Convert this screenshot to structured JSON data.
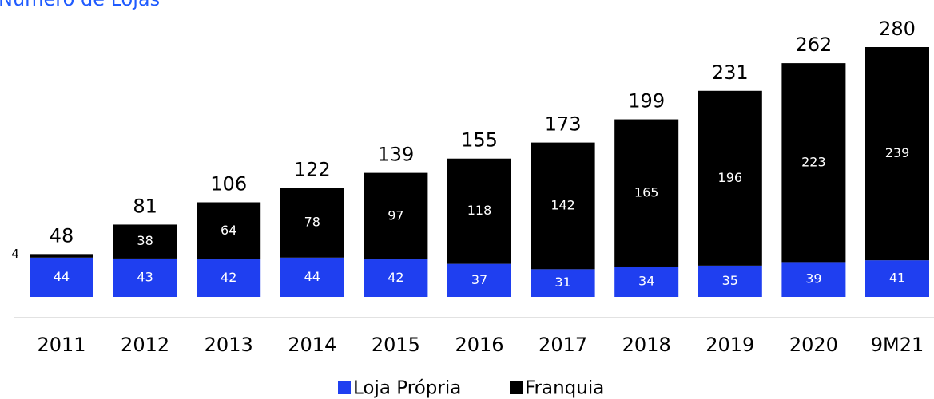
{
  "chart_data": {
    "type": "stacked_bar",
    "title": "Número de Lojas",
    "categories": [
      "2011",
      "2012",
      "2013",
      "2014",
      "2015",
      "2016",
      "2017",
      "2018",
      "2019",
      "2020",
      "9M21"
    ],
    "series": [
      {
        "name": "Loja Própria",
        "color": "#1f3ff0",
        "values": [
          44,
          43,
          42,
          44,
          42,
          37,
          31,
          34,
          35,
          39,
          41
        ]
      },
      {
        "name": "Franquia",
        "color": "#000000",
        "values": [
          4,
          38,
          64,
          78,
          97,
          118,
          142,
          165,
          196,
          223,
          239
        ]
      }
    ],
    "totals": [
      48,
      81,
      106,
      122,
      139,
      155,
      173,
      199,
      231,
      262,
      280
    ],
    "ylim": [
      0,
      280
    ],
    "legend": "bottom"
  }
}
